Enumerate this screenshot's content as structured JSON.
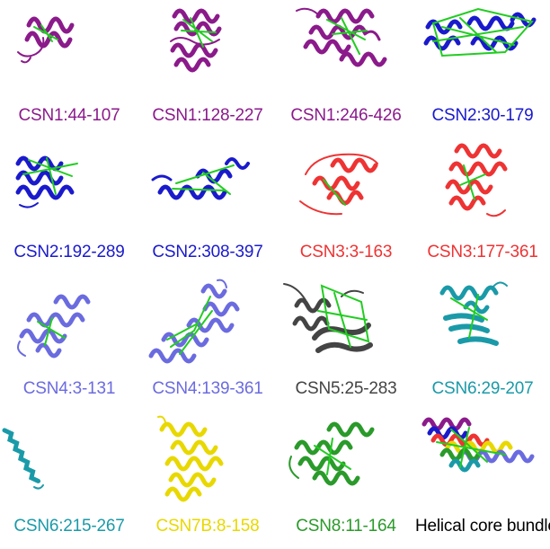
{
  "panels": [
    {
      "label": "CSN1:44-107",
      "color": "#8b1a8b",
      "link_color": "#22cc22"
    },
    {
      "label": "CSN1:128-227",
      "color": "#8b1a8b",
      "link_color": "#22cc22"
    },
    {
      "label": "CSN1:246-426",
      "color": "#8b1a8b",
      "link_color": "#22cc22"
    },
    {
      "label": "CSN2:30-179",
      "color": "#1a1acc",
      "link_color": "#22cc22"
    },
    {
      "label": "CSN2:192-289",
      "color": "#1a1acc",
      "link_color": "#22cc22"
    },
    {
      "label": "CSN2:308-397",
      "color": "#1a1acc",
      "link_color": "#22cc22"
    },
    {
      "label": "CSN3:3-163",
      "color": "#ee3333",
      "link_color": "#22cc22"
    },
    {
      "label": "CSN3:177-361",
      "color": "#ee3333",
      "link_color": "#22cc22"
    },
    {
      "label": "CSN4:3-131",
      "color": "#6b6be0",
      "link_color": "#22cc22"
    },
    {
      "label": "CSN4:139-361",
      "color": "#6b6be0",
      "link_color": "#22cc22"
    },
    {
      "label": "CSN5:25-283",
      "color": "#444444",
      "link_color": "#22cc22"
    },
    {
      "label": "CSN6:29-207",
      "color": "#1a9aa8",
      "link_color": "#22cc22"
    },
    {
      "label": "CSN6:215-267",
      "color": "#1a9aa8",
      "link_color": "#22cc22"
    },
    {
      "label": "CSN7B:8-158",
      "color": "#e8d800",
      "link_color": "#22cc22"
    },
    {
      "label": "CSN8:11-164",
      "color": "#2a9a2a",
      "link_color": "#22cc22"
    },
    {
      "label": "Helical core bundle",
      "color": "#000000",
      "link_color": "#22cc22"
    }
  ]
}
